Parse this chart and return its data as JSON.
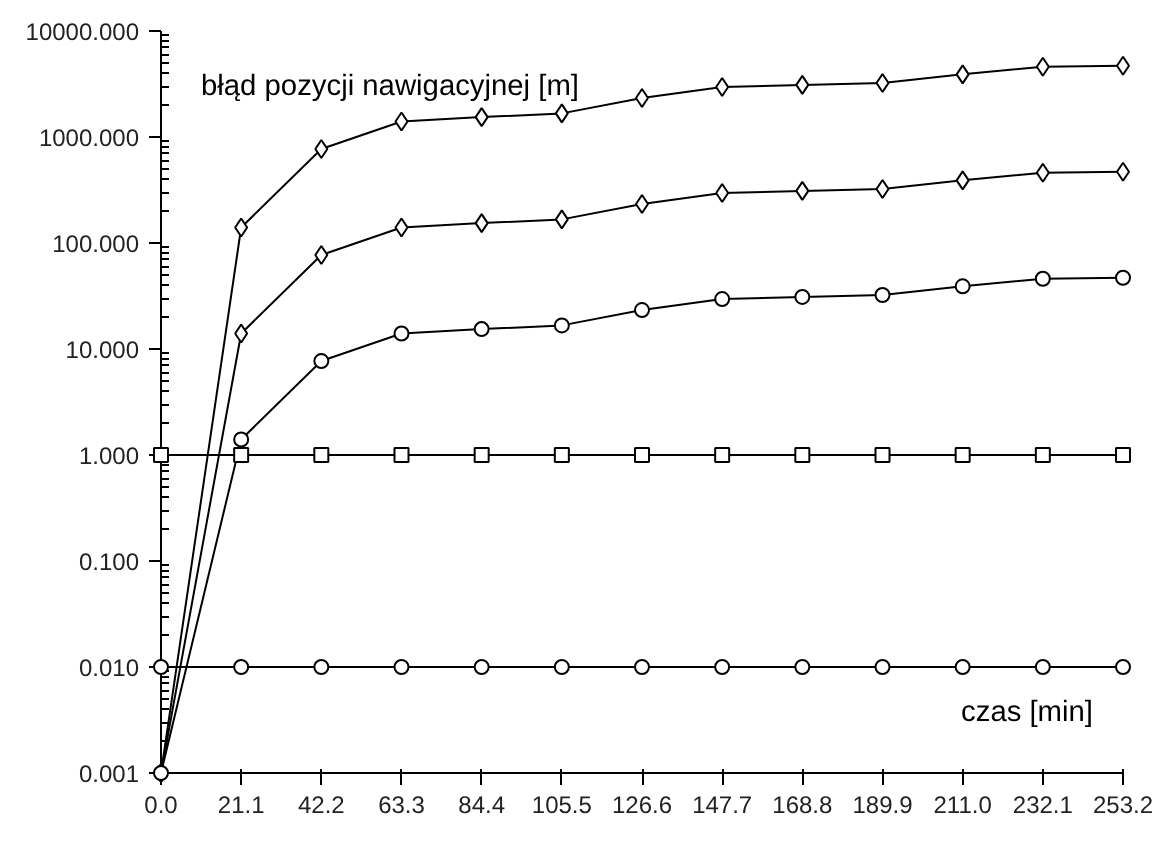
{
  "chart_data": {
    "type": "line",
    "xlabel": "czas [min]",
    "ylabel": "błąd pozycji nawigacyjnej [m]",
    "x": [
      0.0,
      21.1,
      42.2,
      63.3,
      84.4,
      105.5,
      126.6,
      147.7,
      168.8,
      189.9,
      211.0,
      232.1,
      253.2
    ],
    "series": [
      {
        "color": "#000000",
        "marker": "diamond",
        "values": [
          0.001,
          140,
          770,
          1400,
          1540,
          1670,
          2330,
          2960,
          3100,
          3230,
          3900,
          4600,
          4700
        ]
      },
      {
        "color": "#000000",
        "marker": "diamond",
        "values": [
          0.001,
          14,
          77,
          140,
          154,
          167,
          233,
          296,
          310,
          323,
          390,
          460,
          470
        ]
      },
      {
        "color": "#000000",
        "marker": "circle",
        "values": [
          0.001,
          1.4,
          7.7,
          14,
          15.4,
          16.7,
          23.3,
          29.6,
          31,
          32.3,
          39,
          46,
          47
        ]
      },
      {
        "color": "#000000",
        "marker": "square",
        "values": [
          1,
          1,
          1,
          1,
          1,
          1,
          1,
          1,
          1,
          1,
          1,
          1,
          1
        ]
      },
      {
        "color": "#000000",
        "marker": "circle",
        "values": [
          0.01,
          0.01,
          0.01,
          0.01,
          0.01,
          0.01,
          0.01,
          0.01,
          0.01,
          0.01,
          0.01,
          0.01,
          0.01
        ]
      }
    ],
    "log": "y",
    "grid": false,
    "xlim": [
      0.0,
      253.2
    ],
    "xticks": [
      {
        "value": 0.0,
        "label": "0.0"
      },
      21.1,
      42.2,
      63.3,
      84.4,
      105.5,
      126.6,
      147.7,
      168.8,
      189.9,
      {
        "value": 211.0,
        "label": "211.0"
      },
      232.1,
      253.2
    ],
    "ylim": [
      0.001,
      10000
    ],
    "yticks": [
      {
        "value": 0.001,
        "label": "0.001"
      },
      {
        "value": 0.01,
        "label": "0.010"
      },
      {
        "value": 0.1,
        "label": "0.100"
      },
      {
        "value": 1,
        "label": "1.000"
      },
      {
        "value": 10,
        "label": "10.000"
      },
      {
        "value": 100,
        "label": "100.000"
      },
      {
        "value": 1000,
        "label": "1000.000"
      },
      {
        "value": 10000,
        "label": "10000.000"
      }
    ]
  }
}
